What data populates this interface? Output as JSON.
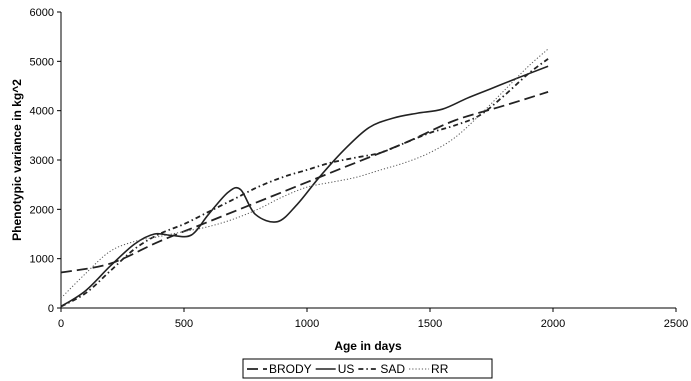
{
  "chart_data": {
    "type": "line",
    "title": "",
    "xlabel": "Age in days",
    "ylabel": "Phenotypic variance in kg^2",
    "xlim": [
      0,
      2500
    ],
    "ylim": [
      0,
      6000
    ],
    "x_ticks": [
      0,
      500,
      1000,
      1500,
      2000,
      2500
    ],
    "y_ticks": [
      0,
      1000,
      2000,
      3000,
      4000,
      5000,
      6000
    ],
    "grid": false,
    "legend_position": "bottom",
    "series": [
      {
        "name": "BRODY",
        "style": "long-dash",
        "color": "#222222",
        "x": [
          0,
          200,
          400,
          600,
          800,
          1000,
          1200,
          1400,
          1600,
          1800,
          1980
        ],
        "y": [
          720,
          900,
          1350,
          1750,
          2150,
          2550,
          2950,
          3350,
          3800,
          4100,
          4380
        ]
      },
      {
        "name": "US",
        "style": "solid",
        "color": "#222222",
        "x": [
          0,
          100,
          200,
          300,
          380,
          450,
          530,
          600,
          680,
          730,
          790,
          880,
          960,
          1050,
          1150,
          1250,
          1350,
          1450,
          1550,
          1650,
          1750,
          1850,
          1980
        ],
        "y": [
          30,
          350,
          850,
          1300,
          1500,
          1470,
          1480,
          1900,
          2350,
          2400,
          1900,
          1750,
          2100,
          2650,
          3200,
          3650,
          3850,
          3950,
          4030,
          4250,
          4450,
          4650,
          4900
        ]
      },
      {
        "name": "SAD",
        "style": "short-dash",
        "color": "#222222",
        "x": [
          0,
          100,
          200,
          300,
          400,
          500,
          600,
          700,
          800,
          900,
          1000,
          1100,
          1200,
          1300,
          1400,
          1500,
          1600,
          1700,
          1800,
          1900,
          1980
        ],
        "y": [
          30,
          300,
          750,
          1200,
          1500,
          1700,
          1950,
          2200,
          2450,
          2650,
          2800,
          2950,
          3050,
          3150,
          3350,
          3550,
          3700,
          3900,
          4300,
          4750,
          5050
        ]
      },
      {
        "name": "RR",
        "style": "dotted",
        "color": "#555555",
        "x": [
          0,
          100,
          200,
          300,
          400,
          500,
          600,
          700,
          800,
          900,
          1000,
          1100,
          1200,
          1300,
          1400,
          1500,
          1600,
          1700,
          1800,
          1900,
          1980
        ],
        "y": [
          200,
          700,
          1150,
          1350,
          1450,
          1550,
          1650,
          1800,
          2000,
          2250,
          2450,
          2550,
          2650,
          2800,
          2950,
          3150,
          3450,
          3900,
          4400,
          4900,
          5250
        ]
      }
    ]
  }
}
